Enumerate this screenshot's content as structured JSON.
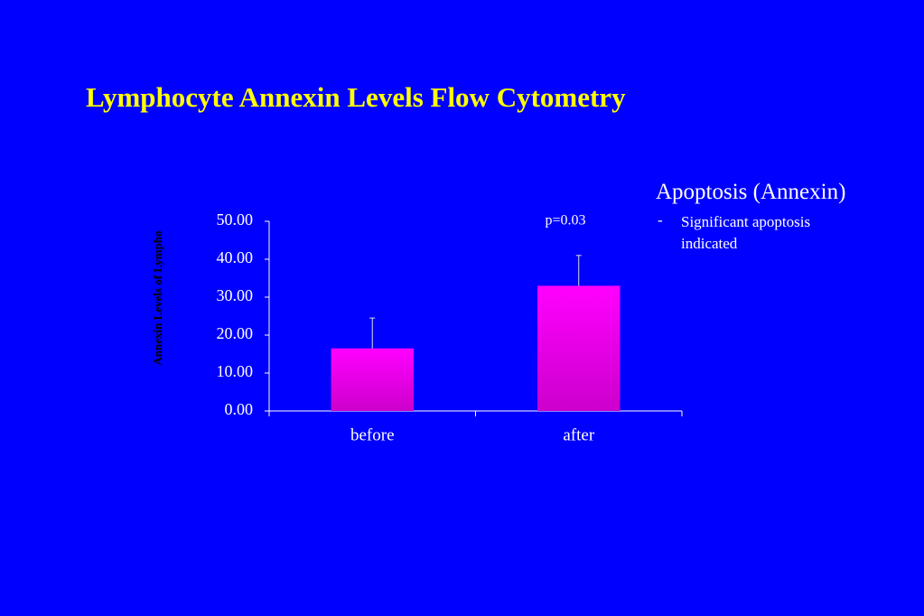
{
  "chart_data": {
    "type": "bar",
    "title": "Lymphocyte Annexin Levels Flow Cytometry",
    "y_label": "Annexin Levels of Lympho",
    "categories": [
      "before",
      "after"
    ],
    "values": [
      16.5,
      33
    ],
    "errors": [
      8,
      8
    ],
    "color": "#ff00ff",
    "annotation": "p=0.03",
    "ylim": [
      0,
      50
    ],
    "yticks": [
      {
        "value": 0,
        "label": "0.00"
      },
      {
        "value": 10,
        "label": "10.00"
      },
      {
        "value": 20,
        "label": "20.00"
      },
      {
        "value": 30,
        "label": "30.00"
      },
      {
        "value": 40,
        "label": "40.00"
      },
      {
        "value": 50,
        "label": "50.00"
      }
    ],
    "grid": false
  },
  "notes": {
    "heading": "Apoptosis (Annexin)",
    "bullets": [
      "Significant apoptosis indicated"
    ]
  }
}
